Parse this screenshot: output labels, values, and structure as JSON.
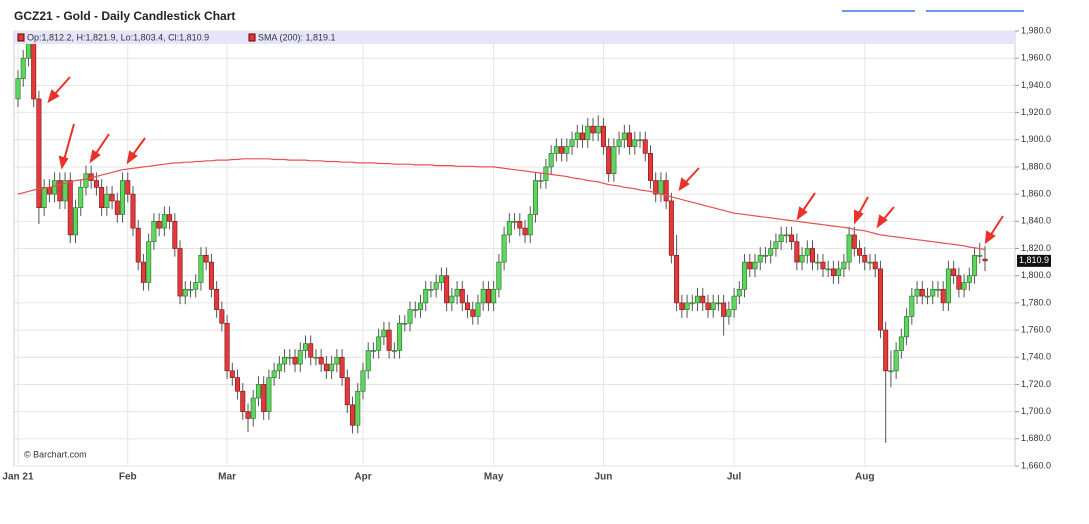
{
  "chart_data": {
    "type": "candlestick",
    "title": "GCZ21 - Gold - Daily Candlestick Chart",
    "ohlc_label": "Op:1,812.2, H:1,821.9, Lo:1,803.4, Cl:1,810.9",
    "sma_label": "SMA (200): 1,819.1",
    "last_price_label": "1,810.9",
    "credit": "© Barchart.com",
    "up_color": "#5cd65c",
    "down_color": "#e23a3a",
    "sma_color": "#e85050",
    "ylim": [
      1660,
      1980
    ],
    "yticks": [
      {
        "value": 1660,
        "label": "1,660.0"
      },
      {
        "value": 1680,
        "label": "1,680.0"
      },
      {
        "value": 1700,
        "label": "1,700.0"
      },
      {
        "value": 1720,
        "label": "1,720.0"
      },
      {
        "value": 1740,
        "label": "1,740.0"
      },
      {
        "value": 1760,
        "label": "1,760.0"
      },
      {
        "value": 1780,
        "label": "1,780.0"
      },
      {
        "value": 1800,
        "label": "1,800.0"
      },
      {
        "value": 1820,
        "label": "1,820.0"
      },
      {
        "value": 1840,
        "label": "1,840.0"
      },
      {
        "value": 1860,
        "label": "1,860.0"
      },
      {
        "value": 1880,
        "label": "1,880.0"
      },
      {
        "value": 1900,
        "label": "1,900.0"
      },
      {
        "value": 1920,
        "label": "1,920.0"
      },
      {
        "value": 1940,
        "label": "1,940.0"
      },
      {
        "value": 1960,
        "label": "1,960.0"
      },
      {
        "value": 1980,
        "label": "1,980.0"
      }
    ],
    "grid": true,
    "categories": [
      "Jan 21",
      null,
      null,
      null,
      null,
      null,
      null,
      null,
      null,
      null,
      null,
      null,
      null,
      null,
      null,
      null,
      null,
      null,
      null,
      null,
      null,
      "Feb",
      null,
      null,
      null,
      null,
      null,
      null,
      null,
      null,
      null,
      null,
      null,
      null,
      null,
      null,
      null,
      null,
      null,
      null,
      "Mar",
      null,
      null,
      null,
      null,
      null,
      null,
      null,
      null,
      null,
      null,
      null,
      null,
      null,
      null,
      null,
      null,
      null,
      null,
      null,
      null,
      null,
      null,
      null,
      null,
      null,
      "Apr",
      null,
      null,
      null,
      null,
      null,
      null,
      null,
      null,
      null,
      null,
      null,
      null,
      null,
      null,
      null,
      null,
      null,
      null,
      null,
      null,
      null,
      null,
      null,
      null,
      "May",
      null,
      null,
      null,
      null,
      null,
      null,
      null,
      null,
      null,
      null,
      null,
      null,
      null,
      null,
      null,
      null,
      null,
      null,
      null,
      null,
      "Jun",
      null,
      null,
      null,
      null,
      null,
      null,
      null,
      null,
      null,
      null,
      null,
      null,
      null,
      null,
      null,
      null,
      null,
      null,
      null,
      null,
      null,
      null,
      null,
      null,
      "Jul",
      null,
      null,
      null,
      null,
      null,
      null,
      null,
      null,
      null,
      null,
      null,
      null,
      null,
      null,
      null,
      null,
      null,
      null,
      null,
      null,
      null,
      null,
      null,
      null,
      "Aug",
      null,
      null,
      null,
      null,
      null,
      null,
      null,
      null,
      null,
      null,
      null,
      null,
      null,
      null,
      null,
      null,
      null,
      null,
      null,
      null,
      null,
      null,
      null
    ],
    "open": [
      1930,
      1945,
      1960,
      1975,
      1930,
      1850,
      1865,
      1860,
      1870,
      1855,
      1870,
      1830,
      1850,
      1865,
      1875,
      1870,
      1865,
      1850,
      1860,
      1855,
      1845,
      1870,
      1860,
      1835,
      1810,
      1795,
      1825,
      1840,
      1835,
      1845,
      1840,
      1820,
      1785,
      1790,
      1790,
      1795,
      1815,
      1810,
      1790,
      1775,
      1765,
      1730,
      1725,
      1715,
      1700,
      1695,
      1710,
      1720,
      1700,
      1725,
      1730,
      1735,
      1740,
      1740,
      1735,
      1745,
      1750,
      1740,
      1740,
      1735,
      1730,
      1735,
      1740,
      1725,
      1705,
      1690,
      1715,
      1730,
      1745,
      1745,
      1755,
      1760,
      1745,
      1745,
      1765,
      1765,
      1775,
      1775,
      1780,
      1790,
      1790,
      1795,
      1800,
      1780,
      1785,
      1790,
      1780,
      1775,
      1770,
      1780,
      1790,
      1780,
      1790,
      1810,
      1830,
      1840,
      1840,
      1835,
      1830,
      1845,
      1870,
      1870,
      1880,
      1890,
      1895,
      1890,
      1895,
      1900,
      1905,
      1900,
      1910,
      1905,
      1910,
      1895,
      1875,
      1895,
      1900,
      1905,
      1895,
      1900,
      1900,
      1890,
      1870,
      1860,
      1870,
      1855,
      1815,
      1780,
      1775,
      1780,
      1780,
      1785,
      1780,
      1775,
      1780,
      1780,
      1770,
      1775,
      1785,
      1790,
      1810,
      1805,
      1810,
      1815,
      1815,
      1820,
      1825,
      1830,
      1830,
      1825,
      1810,
      1815,
      1820,
      1810,
      1810,
      1805,
      1805,
      1800,
      1805,
      1810,
      1830,
      1820,
      1815,
      1810,
      1810,
      1805,
      1760,
      1730,
      1730,
      1745,
      1755,
      1770,
      1785,
      1790,
      1785,
      1785,
      1790,
      1790,
      1780,
      1805,
      1800,
      1790,
      1795,
      1800,
      1815,
      1812.2
    ],
    "high": [
      1951,
      1966,
      1978,
      1978,
      1936,
      1871,
      1871,
      1876,
      1876,
      1876,
      1876,
      1856,
      1871,
      1881,
      1881,
      1876,
      1871,
      1866,
      1866,
      1861,
      1876,
      1876,
      1866,
      1841,
      1816,
      1831,
      1846,
      1846,
      1851,
      1851,
      1846,
      1826,
      1796,
      1796,
      1801,
      1821,
      1821,
      1816,
      1796,
      1781,
      1771,
      1736,
      1731,
      1721,
      1706,
      1716,
      1726,
      1726,
      1731,
      1736,
      1741,
      1746,
      1746,
      1746,
      1751,
      1756,
      1756,
      1746,
      1746,
      1741,
      1741,
      1746,
      1746,
      1731,
      1711,
      1721,
      1736,
      1751,
      1751,
      1761,
      1766,
      1766,
      1751,
      1771,
      1771,
      1781,
      1781,
      1786,
      1796,
      1796,
      1801,
      1806,
      1806,
      1791,
      1796,
      1796,
      1786,
      1781,
      1786,
      1796,
      1796,
      1796,
      1816,
      1836,
      1846,
      1846,
      1846,
      1841,
      1851,
      1876,
      1876,
      1886,
      1896,
      1901,
      1901,
      1901,
      1906,
      1911,
      1911,
      1916,
      1916,
      1918,
      1916,
      1901,
      1901,
      1906,
      1911,
      1911,
      1906,
      1906,
      1906,
      1896,
      1876,
      1876,
      1876,
      1861,
      1830,
      1786,
      1786,
      1786,
      1791,
      1791,
      1786,
      1786,
      1786,
      1786,
      1781,
      1791,
      1796,
      1816,
      1816,
      1816,
      1821,
      1821,
      1826,
      1831,
      1836,
      1836,
      1836,
      1831,
      1821,
      1826,
      1826,
      1816,
      1816,
      1811,
      1811,
      1811,
      1816,
      1836,
      1836,
      1826,
      1821,
      1816,
      1816,
      1811,
      1766,
      1745,
      1751,
      1761,
      1776,
      1791,
      1796,
      1796,
      1791,
      1796,
      1796,
      1796,
      1811,
      1811,
      1806,
      1801,
      1806,
      1821,
      1824,
      1821.9
    ],
    "low": [
      1924,
      1939,
      1954,
      1924,
      1838,
      1844,
      1854,
      1854,
      1849,
      1849,
      1824,
      1824,
      1844,
      1859,
      1864,
      1859,
      1844,
      1844,
      1849,
      1839,
      1839,
      1854,
      1829,
      1804,
      1789,
      1789,
      1819,
      1829,
      1829,
      1834,
      1814,
      1779,
      1779,
      1784,
      1784,
      1789,
      1804,
      1784,
      1769,
      1759,
      1724,
      1719,
      1709,
      1694,
      1685,
      1689,
      1704,
      1694,
      1694,
      1719,
      1724,
      1729,
      1734,
      1729,
      1729,
      1739,
      1734,
      1734,
      1729,
      1724,
      1724,
      1729,
      1719,
      1699,
      1684,
      1684,
      1709,
      1724,
      1739,
      1739,
      1749,
      1739,
      1739,
      1739,
      1759,
      1759,
      1769,
      1769,
      1774,
      1784,
      1784,
      1789,
      1774,
      1774,
      1779,
      1774,
      1769,
      1764,
      1764,
      1774,
      1774,
      1774,
      1784,
      1804,
      1824,
      1834,
      1829,
      1824,
      1824,
      1839,
      1864,
      1864,
      1874,
      1884,
      1884,
      1884,
      1889,
      1894,
      1894,
      1894,
      1899,
      1899,
      1889,
      1869,
      1869,
      1889,
      1894,
      1889,
      1889,
      1894,
      1884,
      1864,
      1854,
      1854,
      1849,
      1809,
      1774,
      1769,
      1769,
      1774,
      1774,
      1774,
      1769,
      1769,
      1774,
      1756,
      1764,
      1769,
      1779,
      1784,
      1799,
      1799,
      1804,
      1809,
      1809,
      1814,
      1819,
      1824,
      1819,
      1804,
      1804,
      1809,
      1804,
      1804,
      1799,
      1799,
      1794,
      1794,
      1799,
      1804,
      1814,
      1809,
      1804,
      1804,
      1799,
      1754,
      1677,
      1718,
      1724,
      1739,
      1749,
      1764,
      1779,
      1779,
      1779,
      1779,
      1784,
      1774,
      1774,
      1794,
      1784,
      1784,
      1789,
      1794,
      1809,
      1803.4
    ],
    "close": [
      1945,
      1960,
      1975,
      1930,
      1850,
      1865,
      1860,
      1870,
      1855,
      1870,
      1830,
      1850,
      1865,
      1875,
      1870,
      1865,
      1850,
      1860,
      1855,
      1845,
      1870,
      1860,
      1835,
      1810,
      1795,
      1825,
      1840,
      1835,
      1845,
      1840,
      1820,
      1785,
      1790,
      1790,
      1795,
      1815,
      1810,
      1790,
      1775,
      1765,
      1730,
      1725,
      1715,
      1700,
      1695,
      1710,
      1720,
      1700,
      1725,
      1730,
      1735,
      1740,
      1740,
      1735,
      1745,
      1750,
      1740,
      1740,
      1735,
      1730,
      1735,
      1740,
      1725,
      1705,
      1690,
      1715,
      1730,
      1745,
      1745,
      1755,
      1760,
      1745,
      1745,
      1765,
      1765,
      1775,
      1775,
      1780,
      1790,
      1790,
      1795,
      1800,
      1780,
      1785,
      1790,
      1780,
      1775,
      1770,
      1780,
      1790,
      1780,
      1790,
      1810,
      1830,
      1840,
      1840,
      1835,
      1830,
      1845,
      1870,
      1870,
      1880,
      1890,
      1895,
      1890,
      1895,
      1900,
      1905,
      1900,
      1910,
      1905,
      1910,
      1895,
      1875,
      1895,
      1900,
      1905,
      1895,
      1900,
      1900,
      1890,
      1870,
      1860,
      1870,
      1855,
      1815,
      1780,
      1775,
      1780,
      1780,
      1785,
      1780,
      1775,
      1780,
      1780,
      1770,
      1775,
      1785,
      1790,
      1810,
      1805,
      1810,
      1815,
      1815,
      1820,
      1825,
      1830,
      1830,
      1825,
      1810,
      1815,
      1820,
      1810,
      1810,
      1805,
      1805,
      1800,
      1805,
      1810,
      1830,
      1820,
      1815,
      1810,
      1810,
      1805,
      1760,
      1730,
      1730,
      1745,
      1755,
      1770,
      1785,
      1790,
      1785,
      1785,
      1790,
      1790,
      1780,
      1805,
      1800,
      1790,
      1795,
      1800,
      1815,
      1815,
      1810.9
    ],
    "sma": [
      1860,
      1861,
      1862,
      1863,
      1864,
      1864.5,
      1865,
      1866,
      1867,
      1868,
      1869,
      1870,
      1870.5,
      1871,
      1872,
      1873,
      1874,
      1875,
      1876,
      1877,
      1878,
      1878.5,
      1879,
      1879.5,
      1880,
      1880.5,
      1881,
      1881.5,
      1882,
      1882.5,
      1883,
      1883,
      1883.5,
      1883.5,
      1884,
      1884,
      1884.5,
      1884.5,
      1885,
      1885,
      1885,
      1885.5,
      1885.5,
      1886,
      1886,
      1886,
      1886,
      1886,
      1886,
      1885.5,
      1885.5,
      1885.5,
      1885,
      1885,
      1885,
      1885,
      1884.5,
      1884.5,
      1884.5,
      1884,
      1884,
      1884,
      1883.5,
      1883.5,
      1883.5,
      1883,
      1883,
      1883,
      1883,
      1882.5,
      1882.5,
      1882.5,
      1882,
      1882,
      1882,
      1882,
      1881.5,
      1881.5,
      1881.5,
      1881.5,
      1881,
      1881,
      1881,
      1881,
      1880.5,
      1880.5,
      1880.5,
      1880.5,
      1880,
      1880,
      1880,
      1880,
      1879.5,
      1879,
      1878.5,
      1878,
      1877.5,
      1877,
      1876.5,
      1876,
      1875.5,
      1875,
      1874.5,
      1874,
      1873.5,
      1873,
      1872,
      1871.5,
      1871,
      1870,
      1869.5,
      1869,
      1868,
      1867,
      1866.5,
      1866,
      1865,
      1864.5,
      1864,
      1863,
      1862.5,
      1862,
      1861,
      1860,
      1859,
      1858,
      1857,
      1856,
      1855,
      1854,
      1853,
      1852,
      1851,
      1850,
      1849,
      1848,
      1847,
      1846,
      1845.5,
      1845,
      1844.5,
      1844,
      1843.5,
      1843,
      1842.5,
      1842,
      1841.5,
      1841,
      1840.5,
      1840,
      1839.5,
      1839,
      1838.5,
      1838,
      1837.5,
      1837,
      1836.5,
      1836,
      1835.5,
      1835,
      1834,
      1833.5,
      1833,
      1832,
      1831,
      1830,
      1829.5,
      1829,
      1828.5,
      1828,
      1827.5,
      1827,
      1826.5,
      1826,
      1825.5,
      1825,
      1824.5,
      1824,
      1823.5,
      1823,
      1822.5,
      1822,
      1821,
      1820.5,
      1820,
      1819.1
    ]
  }
}
